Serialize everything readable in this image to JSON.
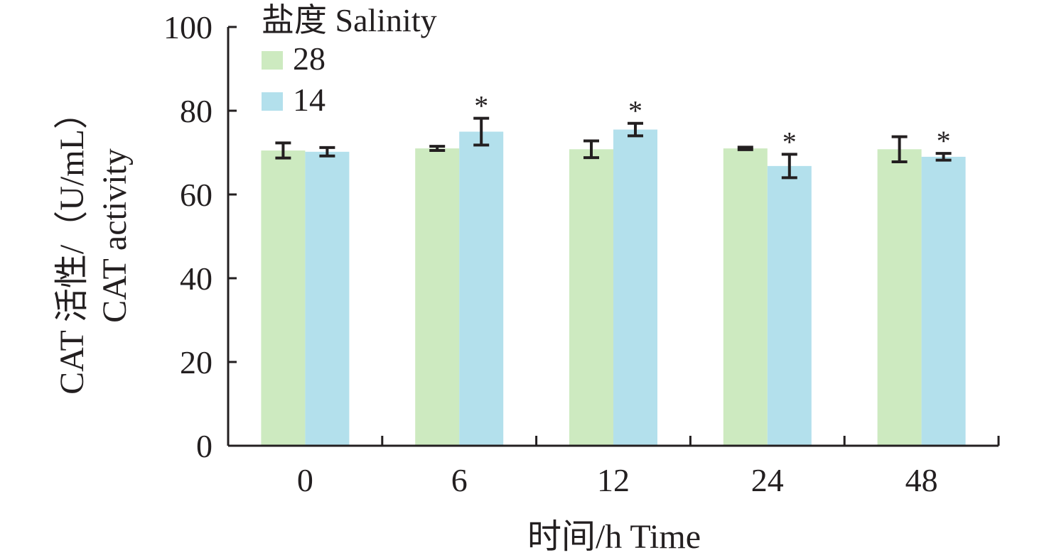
{
  "chart_data": {
    "type": "bar",
    "categories": [
      "0",
      "6",
      "12",
      "24",
      "48"
    ],
    "xlabel": "时间/h Time",
    "ylabel_line1": "CAT 活性/（U/mL）",
    "ylabel_line2": "CAT activity",
    "ylim": [
      0,
      100
    ],
    "yticks": [
      "0",
      "20",
      "40",
      "60",
      "80",
      "100"
    ],
    "grid": false,
    "legend": {
      "title": "盐度 Salinity",
      "placement": "top-left"
    },
    "series": [
      {
        "name": "28",
        "color": "#cdeac0",
        "values": [
          70.5,
          71.0,
          70.8,
          71.0,
          70.8
        ],
        "errors": [
          1.8,
          0.5,
          2.0,
          0.3,
          3.0
        ]
      },
      {
        "name": "14",
        "color": "#b3e0ec",
        "values": [
          70.2,
          75.0,
          75.5,
          66.8,
          69.0
        ],
        "errors": [
          1.0,
          3.2,
          1.5,
          2.8,
          0.8
        ]
      }
    ],
    "significance": [
      [
        "",
        "",
        "",
        "",
        ""
      ],
      [
        "",
        "*",
        "*",
        "*",
        "*"
      ]
    ]
  }
}
